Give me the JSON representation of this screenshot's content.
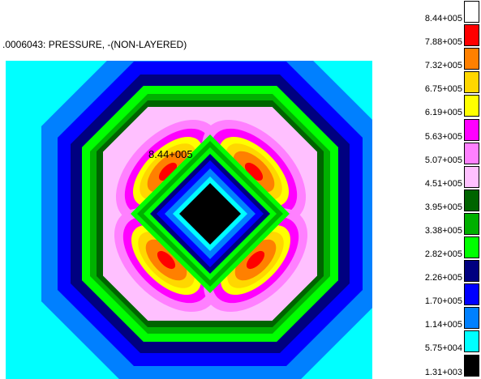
{
  "title": ".0006043: PRESSURE, -(NON-LAYERED)",
  "max_annotation": "8.44+005",
  "legend": {
    "labels": [
      "8.44+005",
      "7.88+005",
      "7.32+005",
      "6.75+005",
      "6.19+005",
      "5.63+005",
      "5.07+005",
      "4.51+005",
      "3.95+005",
      "3.38+005",
      "2.82+005",
      "2.26+005",
      "1.70+005",
      "1.14+005",
      "5.75+004",
      "1.31+003"
    ],
    "colors": [
      "#ffffff",
      "#ff0000",
      "#ff8000",
      "#ffd700",
      "#ffff00",
      "#ff00ff",
      "#ff80ff",
      "#ffc0ff",
      "#006400",
      "#00b000",
      "#00ff00",
      "#000080",
      "#0000ff",
      "#0080ff",
      "#00ffff",
      "#000000"
    ]
  },
  "colors": {
    "background": "#00ffff",
    "level_1": "#0080ff",
    "level_2": "#0000ff",
    "level_3": "#000080",
    "level_4": "#00ff00",
    "level_5": "#00b000",
    "level_6": "#006400",
    "level_7": "#ffc0ff",
    "level_8": "#ff80ff",
    "level_9": "#ff00ff",
    "level_10": "#ffff00",
    "level_11": "#ffd700",
    "level_12": "#ff8000",
    "level_13": "#ff0000",
    "center": "#000000"
  }
}
